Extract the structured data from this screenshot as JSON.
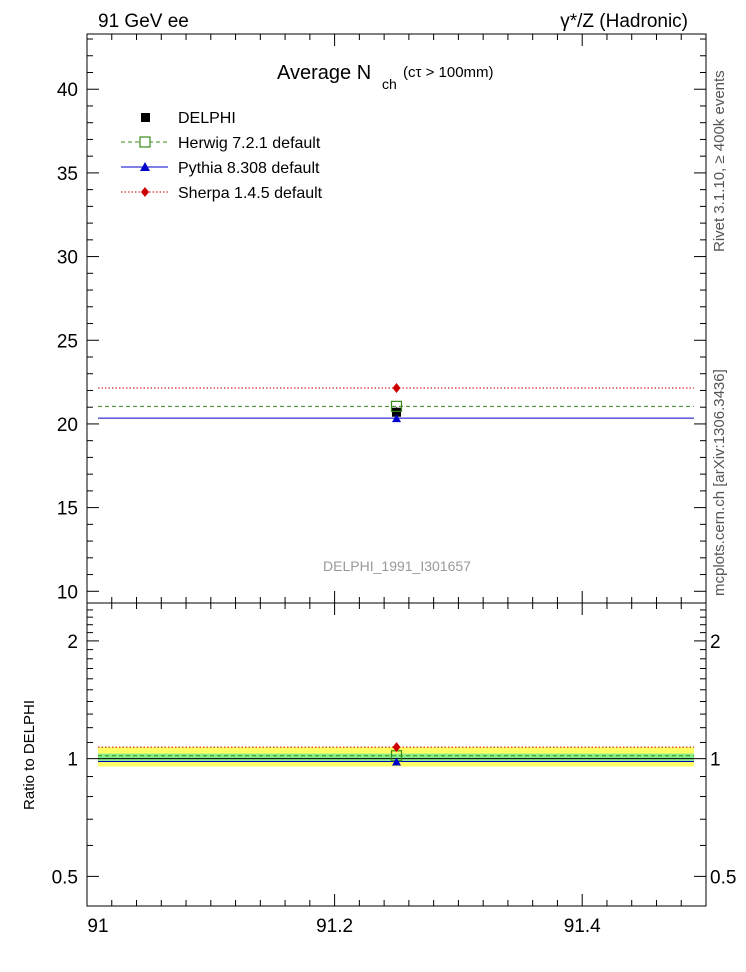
{
  "header": {
    "left": "91 GeV ee",
    "right": "γ*/Z (Hadronic)"
  },
  "side_labels": {
    "top": "Rivet 3.1.10, ≥ 400k events",
    "bottom": "mcplots.cern.ch [arXiv:1306.3436]"
  },
  "colors": {
    "data": "#000000",
    "herwig": "#3a8a1a",
    "pythia": "#0000cc",
    "sherpa": "#cc0000",
    "band_outer": "#ffff66",
    "band_inner": "#88ee88",
    "watermark": "#999999"
  },
  "chart_data": [
    {
      "type": "scatter",
      "title": "Average N",
      "title_sub": "ch",
      "title_suffix": "(cτ > 100mm)",
      "watermark": "DELPHI_1991_I301657",
      "xlim": [
        91.0,
        91.5
      ],
      "ylim": [
        9.3,
        43.3
      ],
      "yticks_major": [
        10,
        15,
        20,
        25,
        30,
        35,
        40
      ],
      "ytick_labels": [
        "10",
        "15",
        "20",
        "25",
        "30",
        "35",
        "40"
      ],
      "xticks_major": [
        91.0,
        91.2,
        91.4
      ],
      "legend": [
        {
          "name": "DELPHI",
          "style": "data-square"
        },
        {
          "name": "Herwig 7.2.1 default",
          "style": "open-square-dashed"
        },
        {
          "name": "Pythia 8.308 default",
          "style": "triangle-solid"
        },
        {
          "name": "Sherpa 1.4.5 default",
          "style": "diamond-dotted"
        }
      ],
      "series": [
        {
          "name": "DELPHI",
          "x": 91.25,
          "y": 20.7,
          "err": 0.3
        },
        {
          "name": "Herwig 7.2.1 default",
          "x": 91.25,
          "y": 21.05,
          "xrange": [
            91.0,
            91.5
          ]
        },
        {
          "name": "Pythia 8.308 default",
          "x": 91.25,
          "y": 20.35,
          "xrange": [
            91.0,
            91.5
          ]
        },
        {
          "name": "Sherpa 1.4.5 default",
          "x": 91.25,
          "y": 22.15,
          "xrange": [
            91.0,
            91.5
          ]
        }
      ]
    },
    {
      "type": "scatter",
      "ylabel": "Ratio to DELPHI",
      "xlim": [
        91.0,
        91.5
      ],
      "ylim": [
        0.42,
        2.5
      ],
      "yscale": "log",
      "ytick_labels_pos": [
        0.5,
        1,
        2
      ],
      "ytick_labels": [
        "0.5",
        "1",
        "2"
      ],
      "xtick_labels": [
        "91",
        "91.2",
        "91.4"
      ],
      "band_outer": [
        0.955,
        1.07
      ],
      "band_inner": [
        0.985,
        1.03
      ],
      "series": [
        {
          "name": "Herwig 7.2.1 default",
          "y": 1.017
        },
        {
          "name": "Pythia 8.308 default",
          "y": 0.983
        },
        {
          "name": "Sherpa 1.4.5 default",
          "y": 1.07
        }
      ]
    }
  ]
}
